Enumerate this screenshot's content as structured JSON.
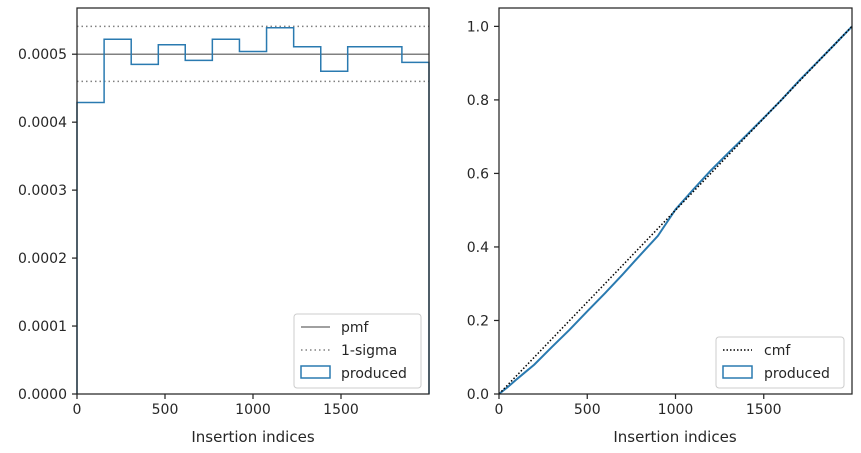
{
  "chart_data": [
    {
      "type": "histogram",
      "xlabel": "Insertion indices",
      "ylabel": "",
      "xlim": [
        0,
        2000
      ],
      "ylim": [
        0,
        0.000568
      ],
      "xticks": [
        0,
        500,
        1000,
        1500
      ],
      "xtick_labels": [
        "0",
        "500",
        "1000",
        "1500"
      ],
      "yticks": [
        0,
        0.0001,
        0.0002,
        0.0003,
        0.0004,
        0.0005
      ],
      "ytick_labels": [
        "0.0000",
        "0.0001",
        "0.0002",
        "0.0003",
        "0.0004",
        "0.0005"
      ],
      "pmf": 0.0005,
      "sigma_band": [
        0.00046,
        0.000541
      ],
      "bins": [
        0,
        154,
        308,
        462,
        615,
        769,
        923,
        1077,
        1231,
        1385,
        1538,
        1692,
        1846,
        2000
      ],
      "values": [
        0.000429,
        0.000522,
        0.000485,
        0.000514,
        0.000491,
        0.000522,
        0.000504,
        0.000539,
        0.000511,
        0.000475,
        0.000511,
        0.000511,
        0.000488
      ],
      "legend_position": "lower-right",
      "legend": [
        {
          "label": "pmf",
          "style": "solid-gray"
        },
        {
          "label": "1-sigma",
          "style": "dotted-gray"
        },
        {
          "label": "produced",
          "style": "step-blue"
        }
      ],
      "colors": {
        "produced": "#2a7ab0",
        "reference": "#808080"
      }
    },
    {
      "type": "line",
      "xlabel": "Insertion indices",
      "ylabel": "",
      "xlim": [
        0,
        2000
      ],
      "ylim": [
        0,
        1.05
      ],
      "xticks": [
        0,
        500,
        1000,
        1500
      ],
      "xtick_labels": [
        "0",
        "500",
        "1000",
        "1500"
      ],
      "yticks": [
        0,
        0.2,
        0.4,
        0.6,
        0.8,
        1.0
      ],
      "ytick_labels": [
        "0.0",
        "0.2",
        "0.4",
        "0.6",
        "0.8",
        "1.0"
      ],
      "series": [
        {
          "name": "cmf",
          "x": [
            0,
            2000
          ],
          "y": [
            0,
            1.0
          ]
        },
        {
          "name": "produced",
          "x": [
            0,
            50,
            100,
            150,
            200,
            300,
            400,
            500,
            600,
            700,
            800,
            900,
            1000,
            1100,
            1200,
            1300,
            1400,
            1500,
            1600,
            1700,
            1800,
            1900,
            2000
          ],
          "y": [
            0,
            0.019,
            0.04,
            0.06,
            0.08,
            0.128,
            0.175,
            0.225,
            0.274,
            0.325,
            0.378,
            0.43,
            0.502,
            0.556,
            0.608,
            0.656,
            0.703,
            0.751,
            0.8,
            0.852,
            0.901,
            0.95,
            1.0
          ]
        }
      ],
      "legend_position": "lower-right",
      "legend": [
        {
          "label": "cmf",
          "style": "dotted-black"
        },
        {
          "label": "produced",
          "style": "step-blue"
        }
      ],
      "colors": {
        "produced": "#2a7ab0",
        "reference": "#000000"
      }
    }
  ]
}
